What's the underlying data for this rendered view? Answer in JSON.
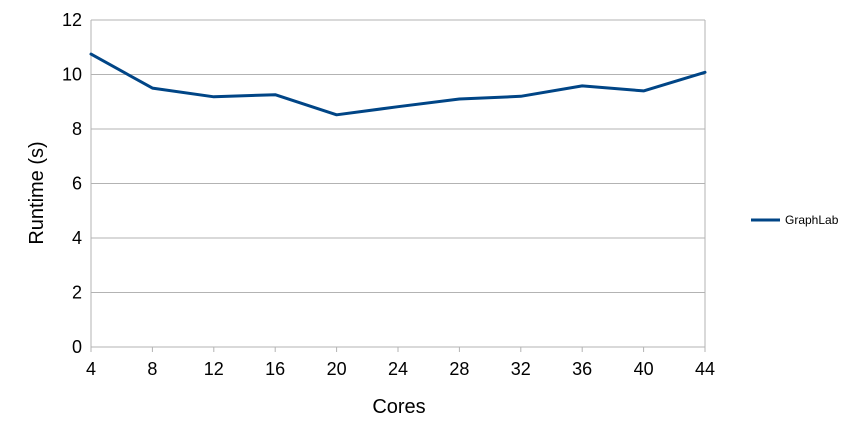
{
  "chart_data": {
    "type": "line",
    "title": "",
    "xlabel": "Cores",
    "ylabel": "Runtime (s)",
    "x": [
      4,
      8,
      12,
      16,
      20,
      24,
      28,
      32,
      36,
      40,
      44
    ],
    "xlim": [
      4,
      44
    ],
    "ylim": [
      0,
      12
    ],
    "yticks": [
      0,
      2,
      4,
      6,
      8,
      10,
      12
    ],
    "grid": "horizontal",
    "legend_position": "right",
    "series": [
      {
        "name": "GraphLab",
        "color": "#004586",
        "values": [
          10.75,
          9.5,
          9.18,
          9.26,
          8.52,
          8.82,
          9.1,
          9.2,
          9.58,
          9.4,
          10.08
        ]
      }
    ]
  }
}
